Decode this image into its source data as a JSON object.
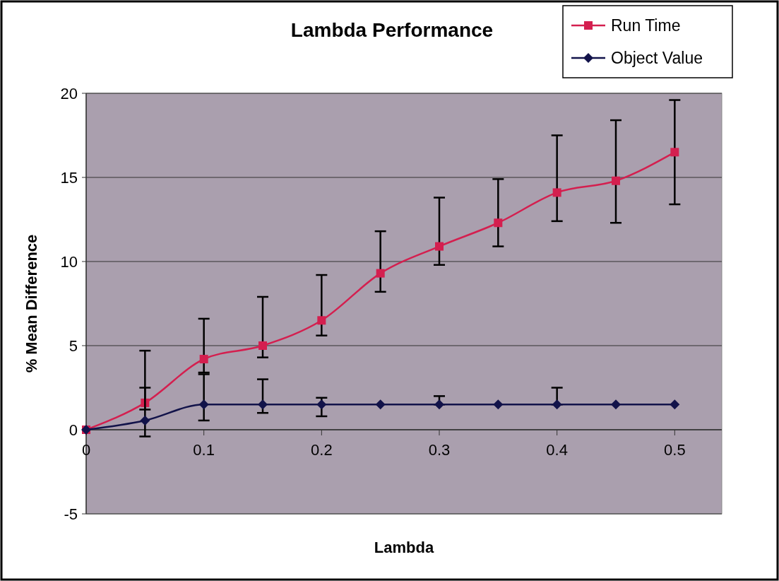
{
  "chart_data": {
    "type": "line",
    "title": "Lambda Performance",
    "xlabel": "Lambda",
    "ylabel": "% Mean Difference",
    "x": [
      0,
      0.05,
      0.1,
      0.15,
      0.2,
      0.25,
      0.3,
      0.35,
      0.4,
      0.45,
      0.5
    ],
    "series": [
      {
        "name": "Run Time",
        "color": "#d41f4f",
        "marker": "square",
        "values": [
          0,
          1.6,
          4.2,
          5.0,
          6.5,
          9.3,
          10.9,
          12.3,
          14.1,
          14.8,
          16.5
        ],
        "errors": [
          null,
          [
            1.2,
            4.7
          ],
          [
            3.4,
            6.6
          ],
          [
            4.3,
            7.9
          ],
          [
            5.6,
            9.2
          ],
          [
            8.2,
            11.8
          ],
          [
            9.8,
            13.8
          ],
          [
            10.9,
            14.9
          ],
          [
            12.4,
            17.5
          ],
          [
            12.3,
            18.4
          ],
          [
            13.4,
            19.6
          ]
        ]
      },
      {
        "name": "Object Value",
        "color": "#12134a",
        "marker": "diamond",
        "values": [
          0,
          0.55,
          1.5,
          1.5,
          1.5,
          1.5,
          1.5,
          1.5,
          1.5,
          1.5,
          1.5
        ],
        "errors": [
          null,
          [
            -0.4,
            2.5
          ],
          [
            0.55,
            3.3
          ],
          [
            1.0,
            3.0
          ],
          [
            0.8,
            1.9
          ],
          null,
          [
            1.5,
            2.0
          ],
          null,
          [
            1.5,
            2.5
          ],
          null,
          null
        ]
      }
    ],
    "xlim": [
      0,
      0.54
    ],
    "xticks": [
      0,
      0.1,
      0.2,
      0.3,
      0.4,
      0.5
    ],
    "ylim": [
      -5,
      20
    ],
    "yticks": [
      -5,
      0,
      5,
      10,
      15,
      20
    ],
    "grid": "y",
    "legend": "top right"
  }
}
